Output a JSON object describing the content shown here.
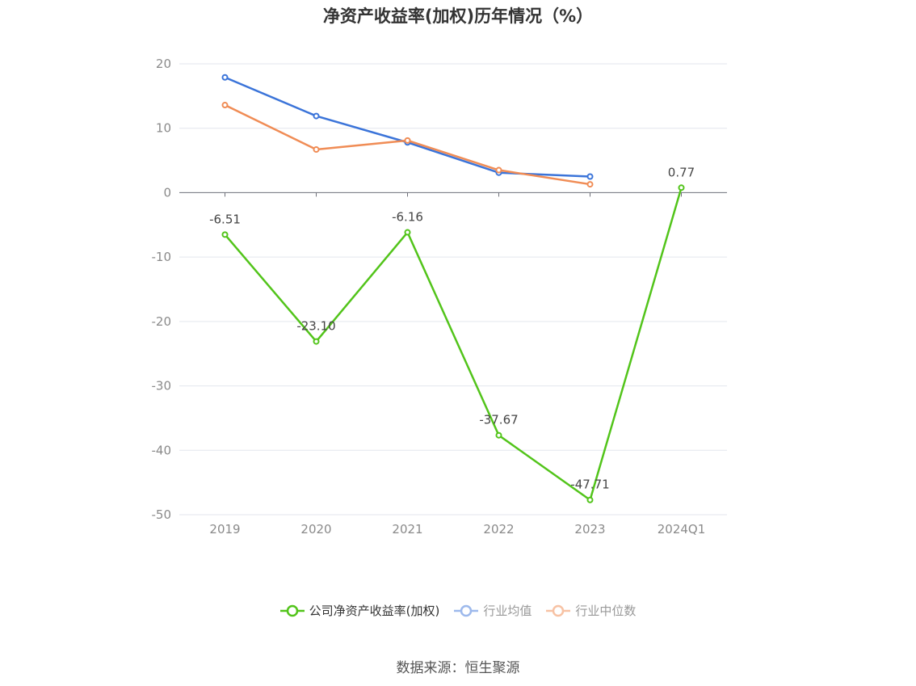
{
  "chart_data": {
    "type": "line",
    "title": "净资产收益率(加权)历年情况（%）",
    "categories": [
      "2019",
      "2020",
      "2021",
      "2022",
      "2023",
      "2024Q1"
    ],
    "ylim": [
      -50,
      20
    ],
    "yticks": [
      20,
      10,
      0,
      -10,
      -20,
      -30,
      -40,
      -50
    ],
    "grid": true,
    "legend_position": "bottom",
    "series": [
      {
        "name": "公司净资产收益率(加权)",
        "color": "#52c41a",
        "labeled": true,
        "values": [
          -6.51,
          -23.1,
          -6.16,
          -37.67,
          -47.71,
          0.77
        ],
        "labels": [
          "-6.51",
          "-23.10",
          "-6.16",
          "-37.67",
          "-47.71",
          "0.77"
        ]
      },
      {
        "name": "行业均值",
        "color": "#3b74d9",
        "legend_color": "#9db9ec",
        "labeled": false,
        "values": [
          17.9,
          11.9,
          7.8,
          3.1,
          2.5,
          null
        ]
      },
      {
        "name": "行业中位数",
        "color": "#f08c55",
        "legend_color": "#f7c2a4",
        "labeled": false,
        "values": [
          13.6,
          6.7,
          8.1,
          3.5,
          1.3,
          null
        ]
      }
    ]
  },
  "source": "数据来源：恒生聚源"
}
